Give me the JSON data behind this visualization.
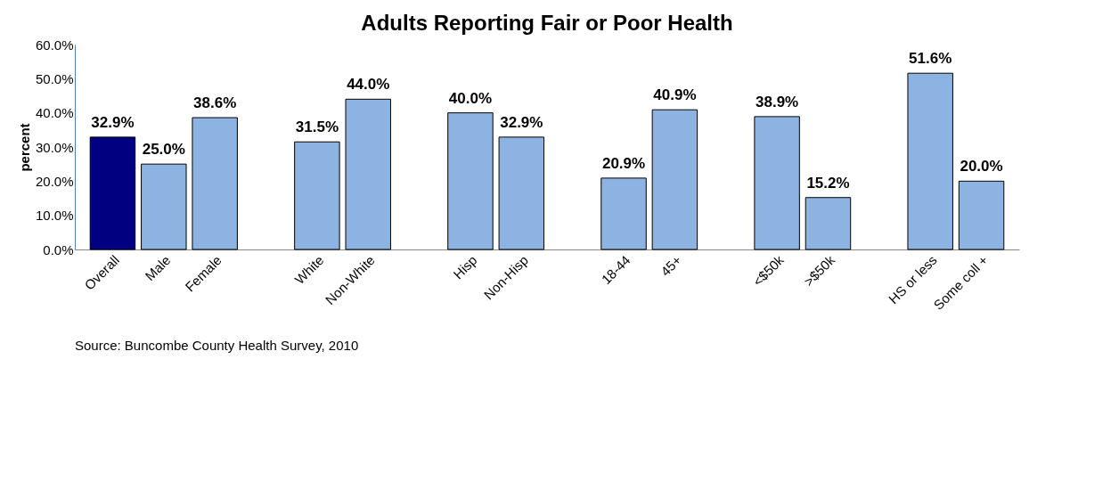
{
  "chart_data": {
    "type": "bar",
    "title": "Adults Reporting Fair or Poor Health",
    "ylabel": "percent",
    "categories": [
      "Overall",
      "Male",
      "Female",
      null,
      "White",
      "Non-White",
      null,
      "Hisp",
      "Non-Hisp",
      null,
      "18-44",
      "45+",
      null,
      "<$50k",
      ">$50k",
      null,
      "HS or less",
      "Some coll +"
    ],
    "values": [
      32.9,
      25.0,
      38.6,
      null,
      31.5,
      44.0,
      null,
      40.0,
      32.9,
      null,
      20.9,
      40.9,
      null,
      38.9,
      15.2,
      null,
      51.6,
      20.0
    ],
    "colors": [
      "#000080",
      "#8db3e2",
      "#8db3e2",
      null,
      "#8db3e2",
      "#8db3e2",
      null,
      "#8db3e2",
      "#8db3e2",
      null,
      "#8db3e2",
      "#8db3e2",
      null,
      "#8db3e2",
      "#8db3e2",
      null,
      "#8db3e2",
      "#8db3e2"
    ],
    "value_labels": [
      "32.9%",
      "25.0%",
      "38.6%",
      null,
      "31.5%",
      "44.0%",
      null,
      "40.0%",
      "32.9%",
      null,
      "20.9%",
      "40.9%",
      null,
      "38.9%",
      "15.2%",
      null,
      "51.6%",
      "20.0%"
    ],
    "ylim": [
      0,
      60
    ],
    "yticks": [
      {
        "value": 0,
        "label": "0.0%"
      },
      {
        "value": 10,
        "label": "10.0%"
      },
      {
        "value": 20,
        "label": "20.0%"
      },
      {
        "value": 30,
        "label": "30.0%"
      },
      {
        "value": 40,
        "label": "40.0%"
      },
      {
        "value": 50,
        "label": "50.0%"
      },
      {
        "value": 60,
        "label": "60.0%"
      }
    ],
    "grid": false,
    "annotations": [
      "Source:  Buncombe County Health Survey, 2010"
    ]
  }
}
